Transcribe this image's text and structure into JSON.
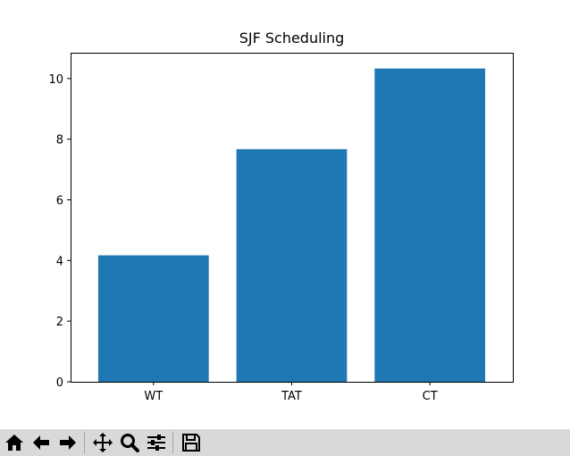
{
  "window": {
    "toolbar": [
      {
        "icon": "home-icon",
        "name": "home-button"
      },
      {
        "icon": "back-arrow-icon",
        "name": "back-button"
      },
      {
        "icon": "forward-arrow-icon",
        "name": "forward-button"
      },
      {
        "icon": "pan-icon",
        "name": "pan-button"
      },
      {
        "icon": "zoom-icon",
        "name": "zoom-button"
      },
      {
        "icon": "configure-subplots-icon",
        "name": "configure-subplots-button"
      },
      {
        "icon": "save-icon",
        "name": "save-button"
      }
    ]
  },
  "chart_data": {
    "type": "bar",
    "title": "SJF Scheduling",
    "xlabel": "",
    "ylabel": "",
    "categories": [
      "WT",
      "TAT",
      "CT"
    ],
    "values": [
      4.17,
      7.67,
      10.33
    ],
    "ylim": [
      0,
      10.85
    ],
    "yticks": [
      0,
      2,
      4,
      6,
      8,
      10
    ],
    "grid": false,
    "bar_color": "#1f77b4"
  }
}
